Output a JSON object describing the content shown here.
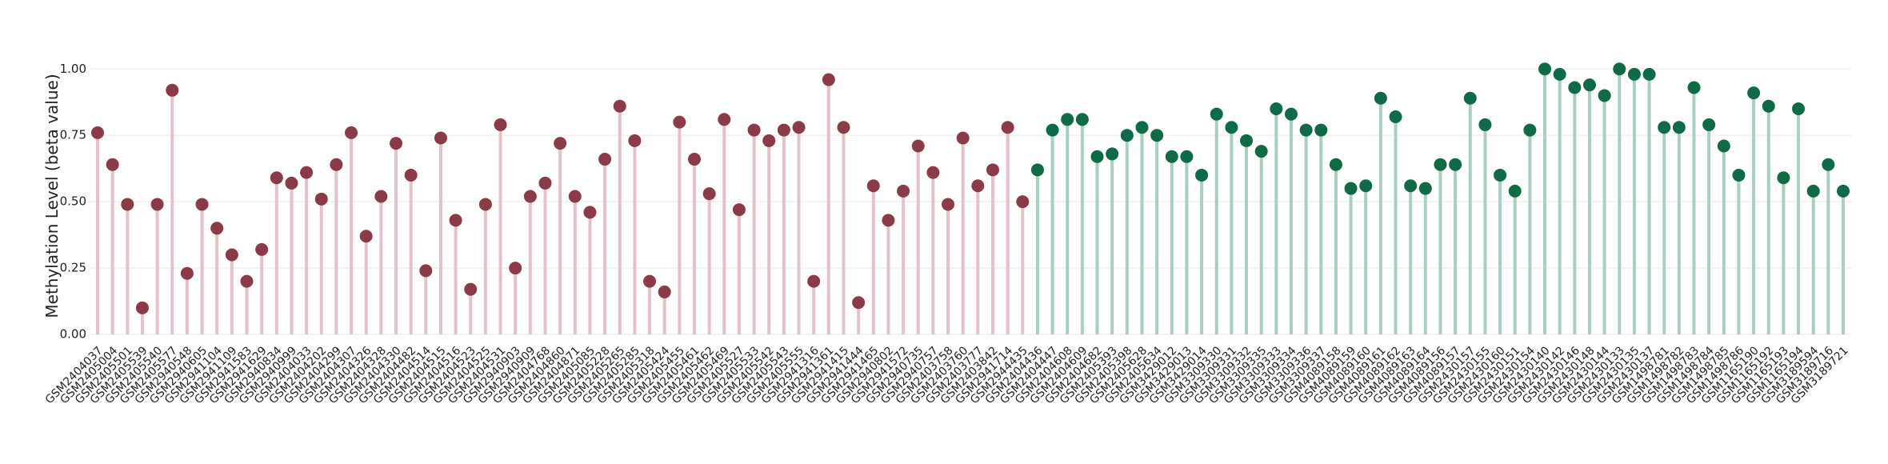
{
  "chart_data": {
    "type": "lollipop",
    "y_label": "Methylation Level (beta value)",
    "ylim": [
      0,
      1.04
    ],
    "yticks": [
      {
        "value": 0,
        "label": "0.00"
      },
      {
        "value": 0.25,
        "label": "0.25"
      },
      {
        "value": 0.5,
        "label": "0.50"
      },
      {
        "value": 0.75,
        "label": "0.75"
      },
      {
        "value": 1,
        "label": "1.00"
      }
    ],
    "grid": true,
    "categories": [
      "GSM2404037",
      "GSM2405004",
      "GSM2405501",
      "GSM2405539",
      "GSM2405540",
      "GSM2405577",
      "GSM2940548",
      "GSM2940605",
      "GSM2941104",
      "GSM2941109",
      "GSM2941583",
      "GSM2941629",
      "GSM2940834",
      "GSM2940999",
      "GSM2404033",
      "GSM2404202",
      "GSM2404299",
      "GSM2404307",
      "GSM2404326",
      "GSM2404328",
      "GSM2404330",
      "GSM2404482",
      "GSM2404514",
      "GSM2404515",
      "GSM2404516",
      "GSM2404523",
      "GSM2404525",
      "GSM2404531",
      "GSM2940903",
      "GSM2940909",
      "GSM2404768",
      "GSM2404860",
      "GSM2404871",
      "GSM2405085",
      "GSM2405228",
      "GSM2405265",
      "GSM2405285",
      "GSM2405318",
      "GSM2405424",
      "GSM2405455",
      "GSM2405461",
      "GSM2405462",
      "GSM2405469",
      "GSM2405527",
      "GSM2405533",
      "GSM2405542",
      "GSM2405543",
      "GSM2405555",
      "GSM2941316",
      "GSM2941361",
      "GSM2941415",
      "GSM2941444",
      "GSM2941465",
      "GSM2940802",
      "GSM2941572",
      "GSM2940735",
      "GSM2940757",
      "GSM2403758",
      "GSM2403760",
      "GSM2403777",
      "GSM2403842",
      "GSM2941714",
      "GSM2944435",
      "GSM2404436",
      "GSM2404447",
      "GSM2404608",
      "GSM2404609",
      "GSM2404682",
      "GSM2405393",
      "GSM2405398",
      "GSM2405628",
      "GSM2405634",
      "GSM3429012",
      "GSM3429013",
      "GSM3429014",
      "GSM3309330",
      "GSM3309331",
      "GSM3309332",
      "GSM3309335",
      "GSM3309333",
      "GSM3309334",
      "GSM3309336",
      "GSM3309337",
      "GSM4089158",
      "GSM4089159",
      "GSM4089160",
      "GSM4089161",
      "GSM4089162",
      "GSM4089163",
      "GSM4089164",
      "GSM4089156",
      "GSM4089157",
      "GSM2430157",
      "GSM2430155",
      "GSM2430160",
      "GSM2430151",
      "GSM2430154",
      "GSM2430140",
      "GSM2430142",
      "GSM2430146",
      "GSM2430148",
      "GSM2430144",
      "GSM2430133",
      "GSM2430135",
      "GSM2430137",
      "GSM1498781",
      "GSM1498782",
      "GSM1498783",
      "GSM1498784",
      "GSM1498785",
      "GSM1498786",
      "GSM1165190",
      "GSM1165192",
      "GSM1165193",
      "GSM1165194",
      "GSM3189594",
      "GSM3189716",
      "GSM3189721"
    ],
    "series": [
      {
        "color": "#8b3a48",
        "stem_color": "#e3c3c9",
        "values": [
          0.76,
          0.64,
          0.49,
          0.1,
          0.49,
          0.92,
          0.23,
          0.49,
          0.4,
          0.3,
          0.2,
          0.32,
          0.59,
          0.57,
          0.61,
          0.51,
          0.64,
          0.76,
          0.37,
          0.52,
          0.72,
          0.6,
          0.24,
          0.74,
          0.43,
          0.17,
          0.49,
          0.79,
          0.25,
          0.52,
          0.57,
          0.72,
          0.52,
          0.46,
          0.66,
          0.86,
          0.73,
          0.2,
          0.16,
          0.8,
          0.66,
          0.53,
          0.81,
          0.47,
          0.77,
          0.73,
          0.77,
          0.78,
          0.2,
          0.96,
          0.78,
          0.12,
          0.56,
          0.43,
          0.54,
          0.71,
          0.61,
          0.49,
          0.74,
          0.56,
          0.62,
          0.78,
          0.5,
          null,
          null,
          null,
          null,
          null,
          null,
          null,
          null,
          null,
          null,
          null,
          null,
          null,
          null,
          null,
          null,
          null,
          null,
          null,
          null,
          null,
          null,
          null,
          null,
          null,
          null,
          null,
          null,
          null,
          null,
          null,
          null,
          null,
          null,
          null,
          null,
          null,
          null,
          null,
          null,
          null,
          null,
          null,
          null,
          null,
          null,
          null,
          null,
          null,
          null,
          null,
          null,
          null,
          null,
          null
        ]
      },
      {
        "color": "#0e6b45",
        "stem_color": "#a9d0bf",
        "values": [
          null,
          null,
          null,
          null,
          null,
          null,
          null,
          null,
          null,
          null,
          null,
          null,
          null,
          null,
          null,
          null,
          null,
          null,
          null,
          null,
          null,
          null,
          null,
          null,
          null,
          null,
          null,
          null,
          null,
          null,
          null,
          null,
          null,
          null,
          null,
          null,
          null,
          null,
          null,
          null,
          null,
          null,
          null,
          null,
          null,
          null,
          null,
          null,
          null,
          null,
          null,
          null,
          null,
          null,
          null,
          null,
          null,
          null,
          null,
          null,
          null,
          null,
          null,
          0.62,
          0.77,
          0.81,
          0.81,
          0.67,
          0.68,
          0.75,
          0.78,
          0.75,
          0.67,
          0.67,
          0.6,
          0.83,
          0.78,
          0.73,
          0.69,
          0.85,
          0.83,
          0.77,
          0.77,
          0.64,
          0.55,
          0.56,
          0.89,
          0.82,
          0.56,
          0.55,
          0.64,
          0.64,
          0.89,
          0.79,
          0.6,
          0.54,
          0.77,
          1.0,
          0.98,
          0.93,
          0.94,
          0.9,
          1.0,
          0.98,
          0.98,
          0.78,
          0.78,
          0.93,
          0.79,
          0.71,
          0.6,
          0.91,
          0.86,
          0.59,
          0.85,
          0.54,
          0.64,
          0.54
        ]
      }
    ]
  }
}
